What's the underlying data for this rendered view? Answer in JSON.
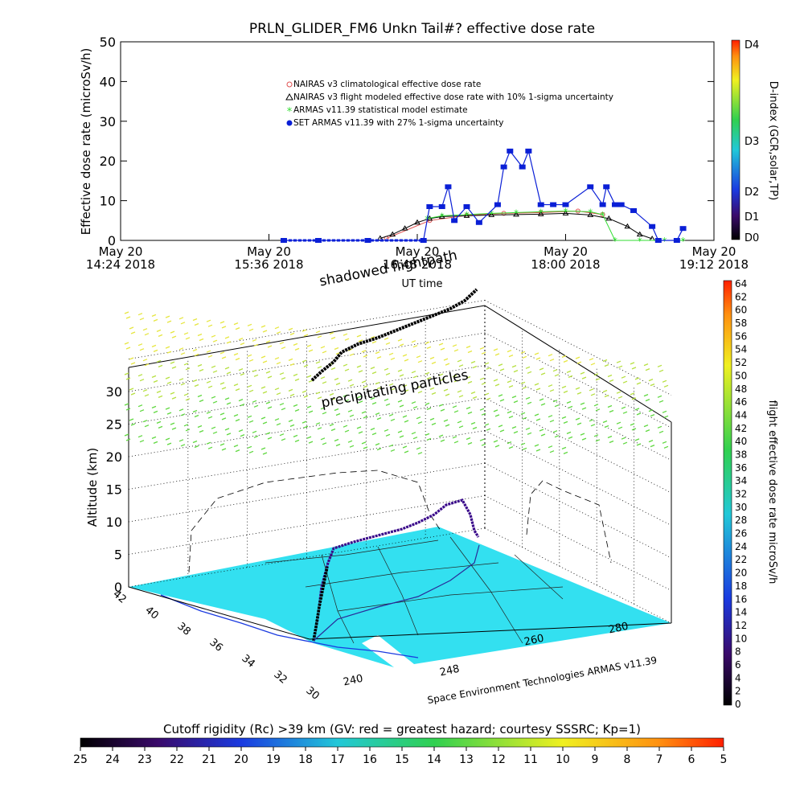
{
  "colors": {
    "nairas_clim": "#e05050",
    "nairas_flight": "#000000",
    "armas_stat": "#33dd33",
    "set_armas": "#0a1fd6",
    "ground": "#33e0f0"
  },
  "chart_data": [
    {
      "type": "line",
      "title": "PRLN_GLIDER_FM6 Unkn Tail#? effective dose rate",
      "xlabel": "UT time",
      "ylabel": "Effective dose rate (microSv/h)",
      "ylim": [
        0,
        50
      ],
      "yticks": [
        "0",
        "10",
        "20",
        "30",
        "40",
        "50"
      ],
      "xticks": [
        {
          "day": "May 20",
          "time": "14:24 2018"
        },
        {
          "day": "May 20",
          "time": "15:36 2018"
        },
        {
          "day": "May 20",
          "time": "16:48 2018"
        },
        {
          "day": "May 20",
          "time": "18:00 2018"
        },
        {
          "day": "May 20",
          "time": "19:12 2018"
        }
      ],
      "xlim_hours": [
        14.4,
        19.2
      ],
      "legend_position": "top-center",
      "series": [
        {
          "name": "NAIRAS v3 climatological effective dose rate",
          "marker": "circle-x",
          "color": "#e05050",
          "x": [
            16.55,
            16.9,
            17.2,
            17.5,
            17.8,
            18.1,
            18.3
          ],
          "y": [
            0.5,
            5.0,
            6.3,
            6.8,
            7.0,
            7.4,
            6.5
          ]
        },
        {
          "name": "NAIRAS v3 flight modeled effective dose rate with 10% 1-sigma uncertainty",
          "marker": "triangle",
          "color": "#000000",
          "x": [
            16.5,
            16.6,
            16.7,
            16.8,
            16.9,
            17.0,
            17.2,
            17.4,
            17.6,
            17.8,
            18.0,
            18.2,
            18.35,
            18.5,
            18.6,
            18.7
          ],
          "y": [
            0.5,
            1.5,
            3.0,
            4.5,
            5.5,
            6.0,
            6.2,
            6.4,
            6.5,
            6.6,
            6.8,
            6.4,
            5.5,
            3.5,
            1.5,
            0.4
          ]
        },
        {
          "name": "ARMAS v11.39 statistical model estimate",
          "marker": "asterisk",
          "color": "#33dd33",
          "x": [
            16.88,
            17.0,
            17.2,
            17.4,
            17.6,
            17.8,
            18.0,
            18.2,
            18.3,
            18.4,
            18.6,
            18.8,
            18.95
          ],
          "y": [
            5.5,
            6.2,
            6.5,
            6.8,
            7.0,
            7.2,
            7.4,
            7.2,
            6.5,
            0,
            0,
            0,
            0
          ]
        },
        {
          "name": "SET ARMAS v11.39 with 27% 1-sigma uncertainty",
          "marker": "filled-circle",
          "color": "#0a1fd6",
          "x": [
            15.72,
            16.0,
            16.4,
            16.85,
            16.9,
            17.0,
            17.05,
            17.1,
            17.2,
            17.3,
            17.45,
            17.5,
            17.55,
            17.65,
            17.7,
            17.8,
            17.9,
            18.0,
            18.2,
            18.3,
            18.33,
            18.4,
            18.45,
            18.55,
            18.7,
            18.75,
            18.9,
            18.95
          ],
          "y": [
            0,
            0,
            0,
            0,
            8.5,
            8.5,
            13.5,
            5,
            8.5,
            4.5,
            9,
            18.5,
            22.5,
            18.5,
            22.5,
            9,
            9,
            9,
            13.5,
            9,
            13.5,
            9,
            9,
            7.5,
            3.5,
            0,
            0,
            3
          ]
        }
      ]
    },
    {
      "type": "scatter",
      "title": "",
      "zlabel": "Altitude (km)",
      "zticks": [
        "0",
        "5",
        "10",
        "15",
        "20",
        "25",
        "30"
      ],
      "lat_ticks": [
        "42",
        "40",
        "38",
        "36",
        "34",
        "32",
        "30"
      ],
      "lon_ticks": [
        "240",
        "248",
        "260",
        "280"
      ],
      "annotations": [
        "shadowed flightpath",
        "precipitating particles"
      ],
      "credit": "Space Environment Technologies ARMAS v11.39"
    }
  ],
  "right_colorbar_top": {
    "label": "D-index (GCR,solar,TP)",
    "ticks": [
      "D4",
      "D3",
      "D2",
      "D1",
      "D0"
    ]
  },
  "right_colorbar_bottom": {
    "label": "flight effective dose rate microSv/h",
    "ticks": [
      "0",
      "2",
      "4",
      "6",
      "8",
      "10",
      "12",
      "14",
      "16",
      "18",
      "20",
      "22",
      "24",
      "26",
      "28",
      "30",
      "32",
      "34",
      "36",
      "38",
      "40",
      "42",
      "44",
      "46",
      "48",
      "50",
      "52",
      "54",
      "56",
      "58",
      "60",
      "62",
      "64"
    ]
  },
  "bottom_colorbar": {
    "label": "Cutoff rigidity (Rc) >39 km (GV: red = greatest hazard; courtesy SSSRC; Kp=1)",
    "ticks": [
      "25",
      "24",
      "23",
      "22",
      "21",
      "20",
      "19",
      "18",
      "17",
      "16",
      "15",
      "14",
      "13",
      "12",
      "11",
      "10",
      "9",
      "8",
      "7",
      "6",
      "5"
    ]
  }
}
